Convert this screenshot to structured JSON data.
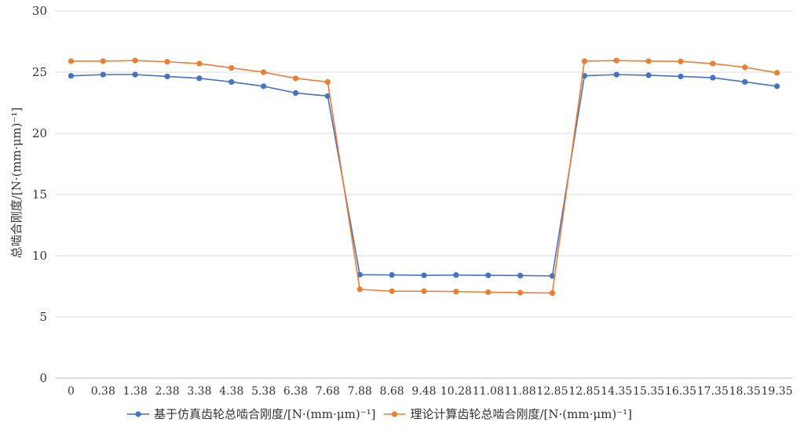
{
  "chart_data": {
    "type": "line",
    "title": "",
    "xlabel": "",
    "ylabel": "总啮合刚度/[N·(mm·μm)⁻¹]",
    "ylim": [
      0,
      30
    ],
    "yticks": [
      0,
      5,
      10,
      15,
      20,
      25,
      30
    ],
    "grid": true,
    "legend_position": "bottom",
    "categories": [
      "0",
      "0.38",
      "1.38",
      "2.38",
      "3.38",
      "4.38",
      "5.38",
      "6.38",
      "7.68",
      "7.88",
      "8.68",
      "9.48",
      "10.28",
      "11.08",
      "11.88",
      "12.85",
      "12.85",
      "14.35",
      "15.35",
      "16.35",
      "17.35",
      "18.35",
      "19.35"
    ],
    "series": [
      {
        "name": "基于仿真齿轮总啮合刚度/[N·(mm·μm)⁻¹]",
        "color": "#4472C4",
        "values": [
          24.7,
          24.8,
          24.8,
          24.65,
          24.5,
          24.2,
          23.85,
          23.3,
          23.05,
          8.45,
          8.43,
          8.4,
          8.42,
          8.4,
          8.38,
          8.35,
          24.7,
          24.8,
          24.75,
          24.65,
          24.55,
          24.2,
          23.85
        ]
      },
      {
        "name": "理论计算齿轮总啮合刚度/[N·(mm·μm)⁻¹]",
        "color": "#ED7D31",
        "values": [
          25.9,
          25.9,
          25.95,
          25.85,
          25.7,
          25.35,
          25.0,
          24.5,
          24.2,
          7.25,
          7.1,
          7.1,
          7.07,
          7.02,
          6.98,
          6.95,
          25.9,
          25.95,
          25.9,
          25.88,
          25.7,
          25.4,
          24.95
        ]
      }
    ]
  }
}
